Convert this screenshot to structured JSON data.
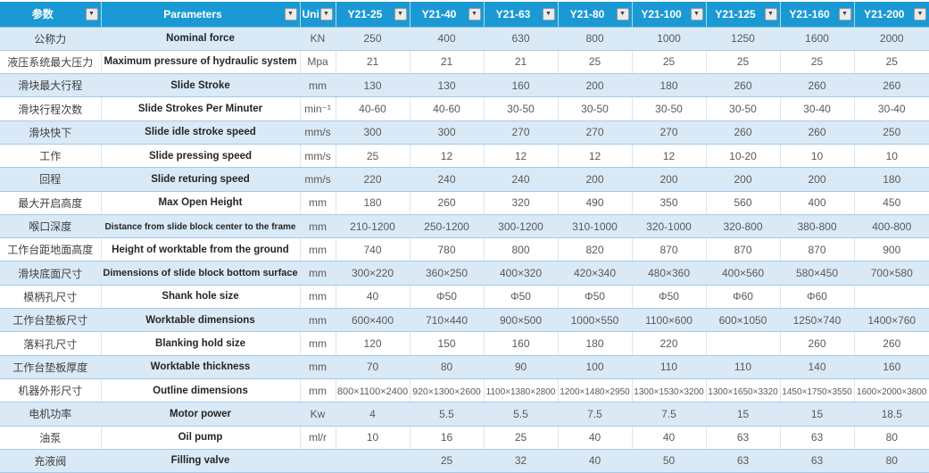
{
  "icons": {
    "filter_dropdown": "▼"
  },
  "colors": {
    "header_bg": "#1b99d5",
    "row_alt_bg": "#d9e9f6",
    "grid_line": "#a6c9e8",
    "header_text": "#ffffff"
  },
  "table": {
    "columns": [
      {
        "key": "zh",
        "label": "参数"
      },
      {
        "key": "en",
        "label": "Parameters"
      },
      {
        "key": "unit",
        "label": "Unit"
      },
      {
        "key": "m25",
        "label": "Y21-25"
      },
      {
        "key": "m40",
        "label": "Y21-40"
      },
      {
        "key": "m63",
        "label": "Y21-63"
      },
      {
        "key": "m80",
        "label": "Y21-80"
      },
      {
        "key": "m100",
        "label": "Y21-100"
      },
      {
        "key": "m125",
        "label": "Y21-125"
      },
      {
        "key": "m160",
        "label": "Y21-160"
      },
      {
        "key": "m200",
        "label": "Y21-200"
      }
    ],
    "rows": [
      {
        "zh": "公称力",
        "en": "Nominal force",
        "unit": "KN",
        "values": [
          "250",
          "400",
          "630",
          "800",
          "1000",
          "1250",
          "1600",
          "2000"
        ]
      },
      {
        "zh": "液压系统最大压力",
        "en": "Maximum pressure of hydraulic system",
        "unit": "Mpa",
        "values": [
          "21",
          "21",
          "21",
          "25",
          "25",
          "25",
          "25",
          "25"
        ]
      },
      {
        "zh": "滑块最大行程",
        "en": "Slide Stroke",
        "unit": "mm",
        "values": [
          "130",
          "130",
          "160",
          "200",
          "180",
          "260",
          "260",
          "260"
        ]
      },
      {
        "zh": "滑块行程次数",
        "en": "Slide Strokes Per Minuter",
        "unit": "min⁻¹",
        "values": [
          "40-60",
          "40-60",
          "30-50",
          "30-50",
          "30-50",
          "30-50",
          "30-40",
          "30-40"
        ]
      },
      {
        "zh": "滑块快下",
        "en": "Slide idle stroke speed",
        "unit": "mm/s",
        "values": [
          "300",
          "300",
          "270",
          "270",
          "270",
          "260",
          "260",
          "250"
        ]
      },
      {
        "zh": "工作",
        "en": "Slide pressing speed",
        "unit": "mm/s",
        "values": [
          "25",
          "12",
          "12",
          "12",
          "12",
          "10-20",
          "10",
          "10"
        ]
      },
      {
        "zh": "回程",
        "en": "Slide returing speed",
        "unit": "mm/s",
        "values": [
          "220",
          "240",
          "240",
          "200",
          "200",
          "200",
          "200",
          "180"
        ]
      },
      {
        "zh": "最大开启高度",
        "en": "Max Open Height",
        "unit": "mm",
        "values": [
          "180",
          "260",
          "320",
          "490",
          "350",
          "560",
          "400",
          "450"
        ]
      },
      {
        "zh": "喉口深度",
        "en": "Distance from slide block center to the frame",
        "unit": "mm",
        "values": [
          "210-1200",
          "250-1200",
          "300-1200",
          "310-1000",
          "320-1000",
          "320-800",
          "380-800",
          "400-800"
        ]
      },
      {
        "zh": "工作台距地面高度",
        "en": "Height of worktable from the ground",
        "unit": "mm",
        "values": [
          "740",
          "780",
          "800",
          "820",
          "870",
          "870",
          "870",
          "900"
        ]
      },
      {
        "zh": "滑块底面尺寸",
        "en": "Dimensions of slide block bottom surface",
        "unit": "mm",
        "values": [
          "300×220",
          "360×250",
          "400×320",
          "420×340",
          "480×360",
          "400×560",
          "580×450",
          "700×580"
        ]
      },
      {
        "zh": "模柄孔尺寸",
        "en": "Shank hole size",
        "unit": "mm",
        "values": [
          "40",
          "Φ50",
          "Φ50",
          "Φ50",
          "Φ50",
          "Φ60",
          "Φ60",
          ""
        ]
      },
      {
        "zh": "工作台垫板尺寸",
        "en": "Worktable dimensions",
        "unit": "mm",
        "values": [
          "600×400",
          "710×440",
          "900×500",
          "1000×550",
          "1100×600",
          "600×1050",
          "1250×740",
          "1400×760"
        ]
      },
      {
        "zh": "落料孔尺寸",
        "en": "Blanking hold size",
        "unit": "mm",
        "values": [
          "120",
          "150",
          "160",
          "180",
          "220",
          "",
          "260",
          "260"
        ]
      },
      {
        "zh": "工作台垫板厚度",
        "en": "Worktable thickness",
        "unit": "mm",
        "values": [
          "70",
          "80",
          "90",
          "100",
          "110",
          "110",
          "140",
          "160"
        ]
      },
      {
        "zh": "机器外形尺寸",
        "en": "Outline dimensions",
        "unit": "mm",
        "values": [
          "800×1100×2400",
          "920×1300×2600",
          "1100×1380×2800",
          "1200×1480×2950",
          "1300×1530×3200",
          "1300×1650×3320",
          "1450×1750×3550",
          "1600×2000×3800"
        ]
      },
      {
        "zh": "电机功率",
        "en": "Motor power",
        "unit": "Kw",
        "values": [
          "4",
          "5.5",
          "5.5",
          "7.5",
          "7.5",
          "15",
          "15",
          "18.5"
        ]
      },
      {
        "zh": "油泵",
        "en": "Oil pump",
        "unit": "ml/r",
        "values": [
          "10",
          "16",
          "25",
          "40",
          "40",
          "63",
          "63",
          "80"
        ]
      },
      {
        "zh": "充液阀",
        "en": "Filling valve",
        "unit": "",
        "values": [
          "",
          "25",
          "32",
          "40",
          "50",
          "63",
          "63",
          "80"
        ]
      }
    ]
  }
}
